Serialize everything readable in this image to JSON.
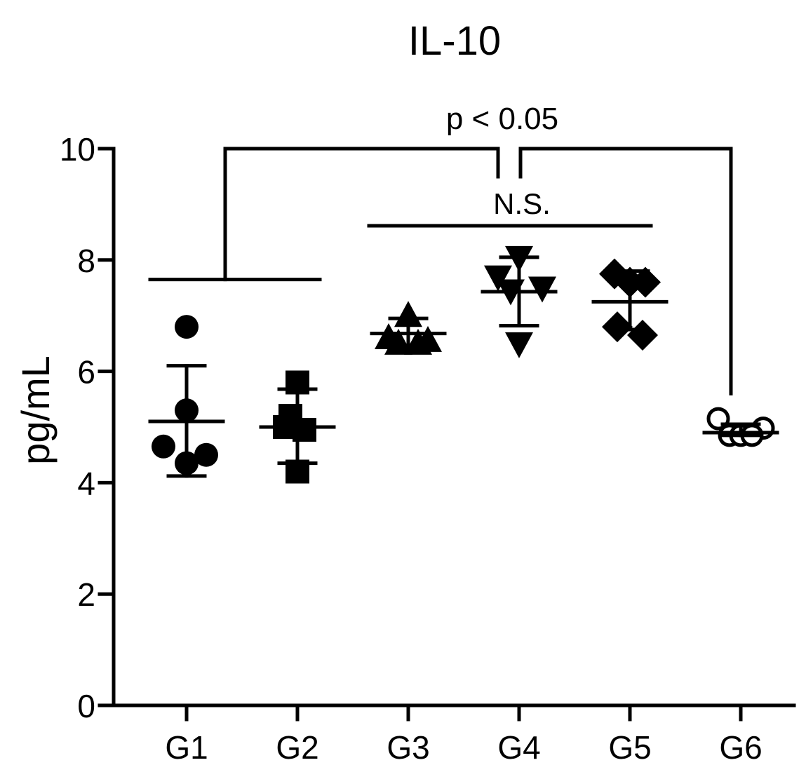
{
  "chart_data": {
    "type": "scatter",
    "title": "IL-10",
    "xlabel": "",
    "ylabel": "pg/mL",
    "ylim": [
      0,
      10
    ],
    "yticks": [
      0,
      2,
      4,
      6,
      8,
      10
    ],
    "categories": [
      "G1",
      "G2",
      "G3",
      "G4",
      "G5",
      "G6"
    ],
    "grid": false,
    "legend": "none",
    "series": [
      {
        "category": "G1",
        "marker": "circle-filled",
        "points": [
          6.8,
          5.3,
          4.65,
          4.35,
          4.5
        ],
        "mean": 5.1,
        "error_low": 4.12,
        "error_high": 6.1
      },
      {
        "category": "G2",
        "marker": "square-filled",
        "points": [
          5.8,
          5.2,
          5.0,
          4.95,
          4.2
        ],
        "mean": 5.0,
        "error_low": 4.35,
        "error_high": 5.68
      },
      {
        "category": "G3",
        "marker": "triangle-up-filled",
        "points": [
          7.0,
          6.6,
          6.55,
          6.5,
          6.5
        ],
        "mean": 6.68,
        "error_low": 6.42,
        "error_high": 6.95
      },
      {
        "category": "G4",
        "marker": "triangle-down-filled",
        "points": [
          8.05,
          7.7,
          7.5,
          7.45,
          6.5
        ],
        "mean": 7.43,
        "error_low": 6.82,
        "error_high": 8.05
      },
      {
        "category": "G5",
        "marker": "diamond-filled",
        "points": [
          7.6,
          7.75,
          7.6,
          6.8,
          6.65
        ],
        "mean": 7.25,
        "error_low": 6.75,
        "error_high": 7.8
      },
      {
        "category": "G6",
        "marker": "circle-open",
        "points": [
          5.15,
          4.98,
          4.85,
          4.85,
          4.85
        ],
        "mean": 4.9,
        "error_low": 4.85,
        "error_high": 5.05
      }
    ],
    "annotations": {
      "significant": {
        "label": "p < 0.05",
        "left_group_span": [
          "G1",
          "G2"
        ],
        "left_group_y": 7.65,
        "right_group_span": [
          "G6",
          "G6"
        ],
        "right_group_y": 5.6,
        "bracket_y": 9.9
      },
      "not_significant": {
        "label": "N.S.",
        "span": [
          "G3",
          "G5"
        ],
        "y": 8.6
      }
    }
  }
}
